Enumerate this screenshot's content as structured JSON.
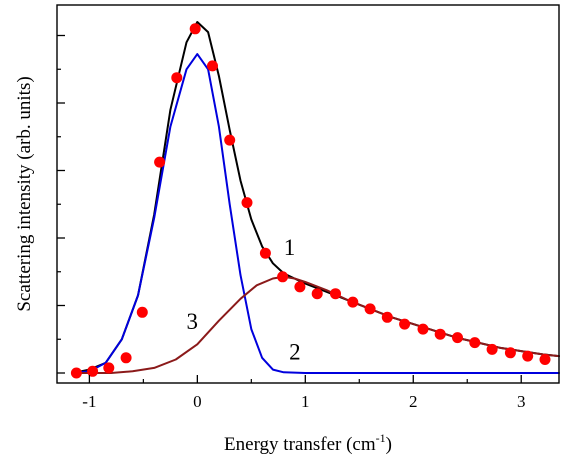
{
  "chart_data": {
    "type": "scatter",
    "title": "",
    "xlabel": "Energy transfer (cm",
    "xlabel_sup": "-1",
    "xlabel_suffix": ")",
    "ylabel": "Scattering intensity (arb. units)",
    "xlim": [
      -1.3,
      3.35
    ],
    "ylim": [
      0,
      1.0
    ],
    "grid": false,
    "x_ticks": [
      -1,
      0,
      1,
      2,
      3
    ],
    "x_tick_labels": [
      "-1",
      "0",
      "1",
      "2",
      "3"
    ],
    "y_ticks": [
      0.0,
      0.2,
      0.4,
      0.6,
      0.8,
      1.0
    ],
    "y_tick_labels_shown": false,
    "series": [
      {
        "kind": "points",
        "color": "#ff0000",
        "values": [
          [
            -1.12,
            0.0
          ],
          [
            -0.97,
            0.005
          ],
          [
            -0.82,
            0.015
          ],
          [
            -0.66,
            0.045
          ],
          [
            -0.51,
            0.18
          ],
          [
            -0.35,
            0.625
          ],
          [
            -0.19,
            0.875
          ],
          [
            -0.02,
            1.02
          ],
          [
            0.14,
            0.91
          ],
          [
            0.3,
            0.69
          ],
          [
            0.46,
            0.505
          ],
          [
            0.63,
            0.355
          ],
          [
            0.79,
            0.285
          ],
          [
            0.95,
            0.255
          ],
          [
            1.11,
            0.235
          ],
          [
            1.28,
            0.235
          ],
          [
            1.44,
            0.21
          ],
          [
            1.6,
            0.19
          ],
          [
            1.76,
            0.165
          ],
          [
            1.92,
            0.145
          ],
          [
            2.09,
            0.13
          ],
          [
            2.25,
            0.115
          ],
          [
            2.41,
            0.105
          ],
          [
            2.57,
            0.09
          ],
          [
            2.73,
            0.07
          ],
          [
            2.9,
            0.06
          ],
          [
            3.06,
            0.05
          ],
          [
            3.22,
            0.04
          ]
        ]
      },
      {
        "kind": "curve",
        "label": "1",
        "color": "#000000",
        "values": [
          [
            -1.15,
            0.0
          ],
          [
            -1.0,
            0.01
          ],
          [
            -0.85,
            0.03
          ],
          [
            -0.7,
            0.1
          ],
          [
            -0.55,
            0.23
          ],
          [
            -0.4,
            0.47
          ],
          [
            -0.25,
            0.78
          ],
          [
            -0.1,
            0.98
          ],
          [
            0.0,
            1.04
          ],
          [
            0.1,
            1.01
          ],
          [
            0.2,
            0.88
          ],
          [
            0.3,
            0.72
          ],
          [
            0.4,
            0.57
          ],
          [
            0.5,
            0.455
          ],
          [
            0.6,
            0.375
          ],
          [
            0.7,
            0.325
          ],
          [
            0.8,
            0.295
          ],
          [
            1.0,
            0.265
          ],
          [
            1.2,
            0.24
          ],
          [
            1.4,
            0.215
          ],
          [
            1.6,
            0.19
          ],
          [
            1.8,
            0.165
          ],
          [
            2.0,
            0.145
          ],
          [
            2.2,
            0.125
          ],
          [
            2.4,
            0.105
          ],
          [
            2.6,
            0.09
          ],
          [
            2.8,
            0.075
          ],
          [
            3.0,
            0.065
          ],
          [
            3.2,
            0.055
          ],
          [
            3.35,
            0.05
          ]
        ]
      },
      {
        "kind": "curve",
        "label": "2",
        "color": "#0000dd",
        "values": [
          [
            -1.15,
            0.0
          ],
          [
            -1.0,
            0.005
          ],
          [
            -0.85,
            0.03
          ],
          [
            -0.7,
            0.1
          ],
          [
            -0.55,
            0.23
          ],
          [
            -0.4,
            0.46
          ],
          [
            -0.25,
            0.73
          ],
          [
            -0.1,
            0.9
          ],
          [
            0.0,
            0.945
          ],
          [
            0.1,
            0.9
          ],
          [
            0.2,
            0.73
          ],
          [
            0.3,
            0.5
          ],
          [
            0.4,
            0.29
          ],
          [
            0.5,
            0.13
          ],
          [
            0.6,
            0.045
          ],
          [
            0.7,
            0.01
          ],
          [
            0.8,
            0.002
          ],
          [
            1.0,
            0.0
          ],
          [
            2.0,
            0.0
          ],
          [
            3.35,
            0.0
          ]
        ]
      },
      {
        "kind": "curve",
        "label": "3",
        "color": "#8b1a1a",
        "values": [
          [
            -1.15,
            0.0
          ],
          [
            -0.8,
            0.0
          ],
          [
            -0.6,
            0.005
          ],
          [
            -0.4,
            0.015
          ],
          [
            -0.2,
            0.04
          ],
          [
            0.0,
            0.085
          ],
          [
            0.2,
            0.155
          ],
          [
            0.4,
            0.22
          ],
          [
            0.55,
            0.26
          ],
          [
            0.7,
            0.28
          ],
          [
            0.8,
            0.285
          ],
          [
            0.9,
            0.28
          ],
          [
            1.0,
            0.27
          ],
          [
            1.2,
            0.245
          ],
          [
            1.4,
            0.215
          ],
          [
            1.6,
            0.19
          ],
          [
            1.8,
            0.165
          ],
          [
            2.0,
            0.145
          ],
          [
            2.2,
            0.125
          ],
          [
            2.4,
            0.105
          ],
          [
            2.6,
            0.09
          ],
          [
            2.8,
            0.075
          ],
          [
            3.0,
            0.065
          ],
          [
            3.2,
            0.055
          ],
          [
            3.35,
            0.05
          ]
        ]
      }
    ],
    "annotations": [
      {
        "text": "1",
        "x": 0.8,
        "y": 0.35
      },
      {
        "text": "2",
        "x": 0.85,
        "y": 0.04
      },
      {
        "text": "3",
        "x": -0.1,
        "y": 0.13
      }
    ]
  }
}
